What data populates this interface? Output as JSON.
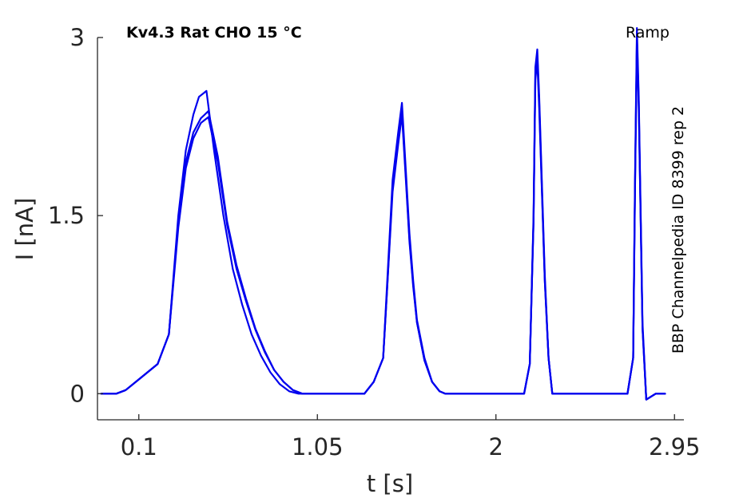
{
  "chart_data": {
    "type": "line",
    "title": "Kv4.3  Rat  CHO  15 °C",
    "protocol_label": "Ramp",
    "side_label": "BBP Channelpedia ID 8399 rep 2",
    "xlabel": "t [s]",
    "ylabel": "I [nA]",
    "xlim": [
      -0.12,
      3.0
    ],
    "ylim": [
      -0.22,
      3.0
    ],
    "x_ticks": [
      0.1,
      1.05,
      2,
      2.95
    ],
    "x_tick_labels": [
      "0.1",
      "1.05",
      "2",
      "2.95"
    ],
    "y_ticks": [
      0,
      1.5,
      3
    ],
    "y_tick_labels": [
      "0",
      "1.5",
      "3"
    ],
    "grid": false,
    "legend": "none",
    "line_color": "#0000ee",
    "series": [
      {
        "x": [
          -0.1,
          -0.02,
          0.03,
          0.1,
          0.2,
          0.26,
          0.31,
          0.35,
          0.39,
          0.42,
          0.46,
          0.5,
          0.55,
          0.6,
          0.65,
          0.7,
          0.75,
          0.8,
          0.85,
          0.9,
          0.95,
          0.98,
          1.05,
          1.2,
          1.3,
          1.35,
          1.4,
          1.42,
          1.45,
          1.48,
          1.5,
          1.52,
          1.54,
          1.56,
          1.58,
          1.62,
          1.66,
          1.7,
          1.73,
          1.75,
          1.8,
          1.9,
          2.0,
          2.1,
          2.15,
          2.18,
          2.2,
          2.21,
          2.22,
          2.23,
          2.26,
          2.28,
          2.3,
          2.35,
          2.5,
          2.65,
          2.7,
          2.73,
          2.74,
          2.75,
          2.76,
          2.78,
          2.8,
          2.85,
          2.9
        ],
        "y": [
          0.0,
          0.0,
          0.03,
          0.12,
          0.25,
          0.5,
          1.5,
          2.05,
          2.35,
          2.5,
          2.55,
          2.05,
          1.5,
          1.05,
          0.75,
          0.5,
          0.32,
          0.18,
          0.08,
          0.02,
          0.0,
          0.0,
          0.0,
          0.0,
          0.0,
          0.1,
          0.3,
          0.9,
          1.8,
          2.2,
          2.45,
          1.9,
          1.35,
          0.95,
          0.62,
          0.3,
          0.1,
          0.02,
          0.0,
          0.0,
          0.0,
          0.0,
          0.0,
          0.0,
          0.0,
          0.25,
          1.5,
          2.75,
          2.9,
          2.5,
          1.0,
          0.3,
          0.0,
          0.0,
          0.0,
          0.0,
          0.0,
          0.3,
          1.8,
          3.08,
          2.5,
          0.6,
          -0.05,
          0.0,
          0.0
        ]
      },
      {
        "x": [
          -0.1,
          -0.02,
          0.03,
          0.1,
          0.2,
          0.26,
          0.31,
          0.35,
          0.39,
          0.43,
          0.47,
          0.52,
          0.57,
          0.62,
          0.67,
          0.72,
          0.77,
          0.82,
          0.87,
          0.92,
          0.97,
          1.0,
          1.05,
          1.2,
          1.3,
          1.35,
          1.4,
          1.42,
          1.45,
          1.48,
          1.5,
          1.52,
          1.54,
          1.56,
          1.58,
          1.62,
          1.66,
          1.7,
          1.73,
          1.75,
          1.8,
          1.9,
          2.0,
          2.1,
          2.15,
          2.18,
          2.2,
          2.21,
          2.22,
          2.23,
          2.26,
          2.28,
          2.3,
          2.35,
          2.5,
          2.65,
          2.7,
          2.73,
          2.74,
          2.75,
          2.76,
          2.78,
          2.8,
          2.85,
          2.9
        ],
        "y": [
          0.0,
          0.0,
          0.03,
          0.12,
          0.25,
          0.5,
          1.45,
          1.95,
          2.2,
          2.32,
          2.38,
          2.0,
          1.45,
          1.08,
          0.8,
          0.55,
          0.36,
          0.2,
          0.1,
          0.03,
          0.0,
          0.0,
          0.0,
          0.0,
          0.0,
          0.1,
          0.3,
          0.85,
          1.75,
          2.15,
          2.38,
          1.85,
          1.3,
          0.92,
          0.6,
          0.28,
          0.1,
          0.02,
          0.0,
          0.0,
          0.0,
          0.0,
          0.0,
          0.0,
          0.0,
          0.25,
          1.45,
          2.7,
          2.85,
          2.45,
          0.95,
          0.3,
          0.0,
          0.0,
          0.0,
          0.0,
          0.0,
          0.3,
          1.75,
          3.0,
          2.45,
          0.55,
          -0.05,
          0.0,
          0.0
        ]
      },
      {
        "x": [
          -0.1,
          -0.02,
          0.03,
          0.1,
          0.2,
          0.26,
          0.31,
          0.35,
          0.39,
          0.43,
          0.47,
          0.52,
          0.57,
          0.62,
          0.67,
          0.72,
          0.77,
          0.82,
          0.87,
          0.92,
          0.97,
          1.0,
          1.05,
          1.2,
          1.3,
          1.35,
          1.4,
          1.42,
          1.45,
          1.48,
          1.5,
          1.52,
          1.54,
          1.56,
          1.58,
          1.62,
          1.66,
          1.7,
          1.73,
          1.75,
          1.8,
          1.9,
          2.0,
          2.1,
          2.15,
          2.18,
          2.2,
          2.21,
          2.22,
          2.23,
          2.26,
          2.28,
          2.3,
          2.35,
          2.5,
          2.65,
          2.7,
          2.73,
          2.74,
          2.75,
          2.76,
          2.78,
          2.8,
          2.85,
          2.9
        ],
        "y": [
          0.0,
          0.0,
          0.03,
          0.12,
          0.25,
          0.5,
          1.4,
          1.9,
          2.15,
          2.28,
          2.33,
          1.95,
          1.42,
          1.05,
          0.78,
          0.54,
          0.35,
          0.2,
          0.1,
          0.03,
          0.0,
          0.0,
          0.0,
          0.0,
          0.0,
          0.1,
          0.3,
          0.85,
          1.7,
          2.1,
          2.35,
          1.82,
          1.28,
          0.9,
          0.6,
          0.28,
          0.1,
          0.02,
          0.0,
          0.0,
          0.0,
          0.0,
          0.0,
          0.0,
          0.0,
          0.25,
          1.45,
          2.65,
          2.8,
          2.4,
          0.95,
          0.3,
          0.0,
          0.0,
          0.0,
          0.0,
          0.0,
          0.3,
          1.7,
          2.95,
          2.4,
          0.55,
          -0.05,
          0.0,
          0.0
        ]
      }
    ]
  }
}
